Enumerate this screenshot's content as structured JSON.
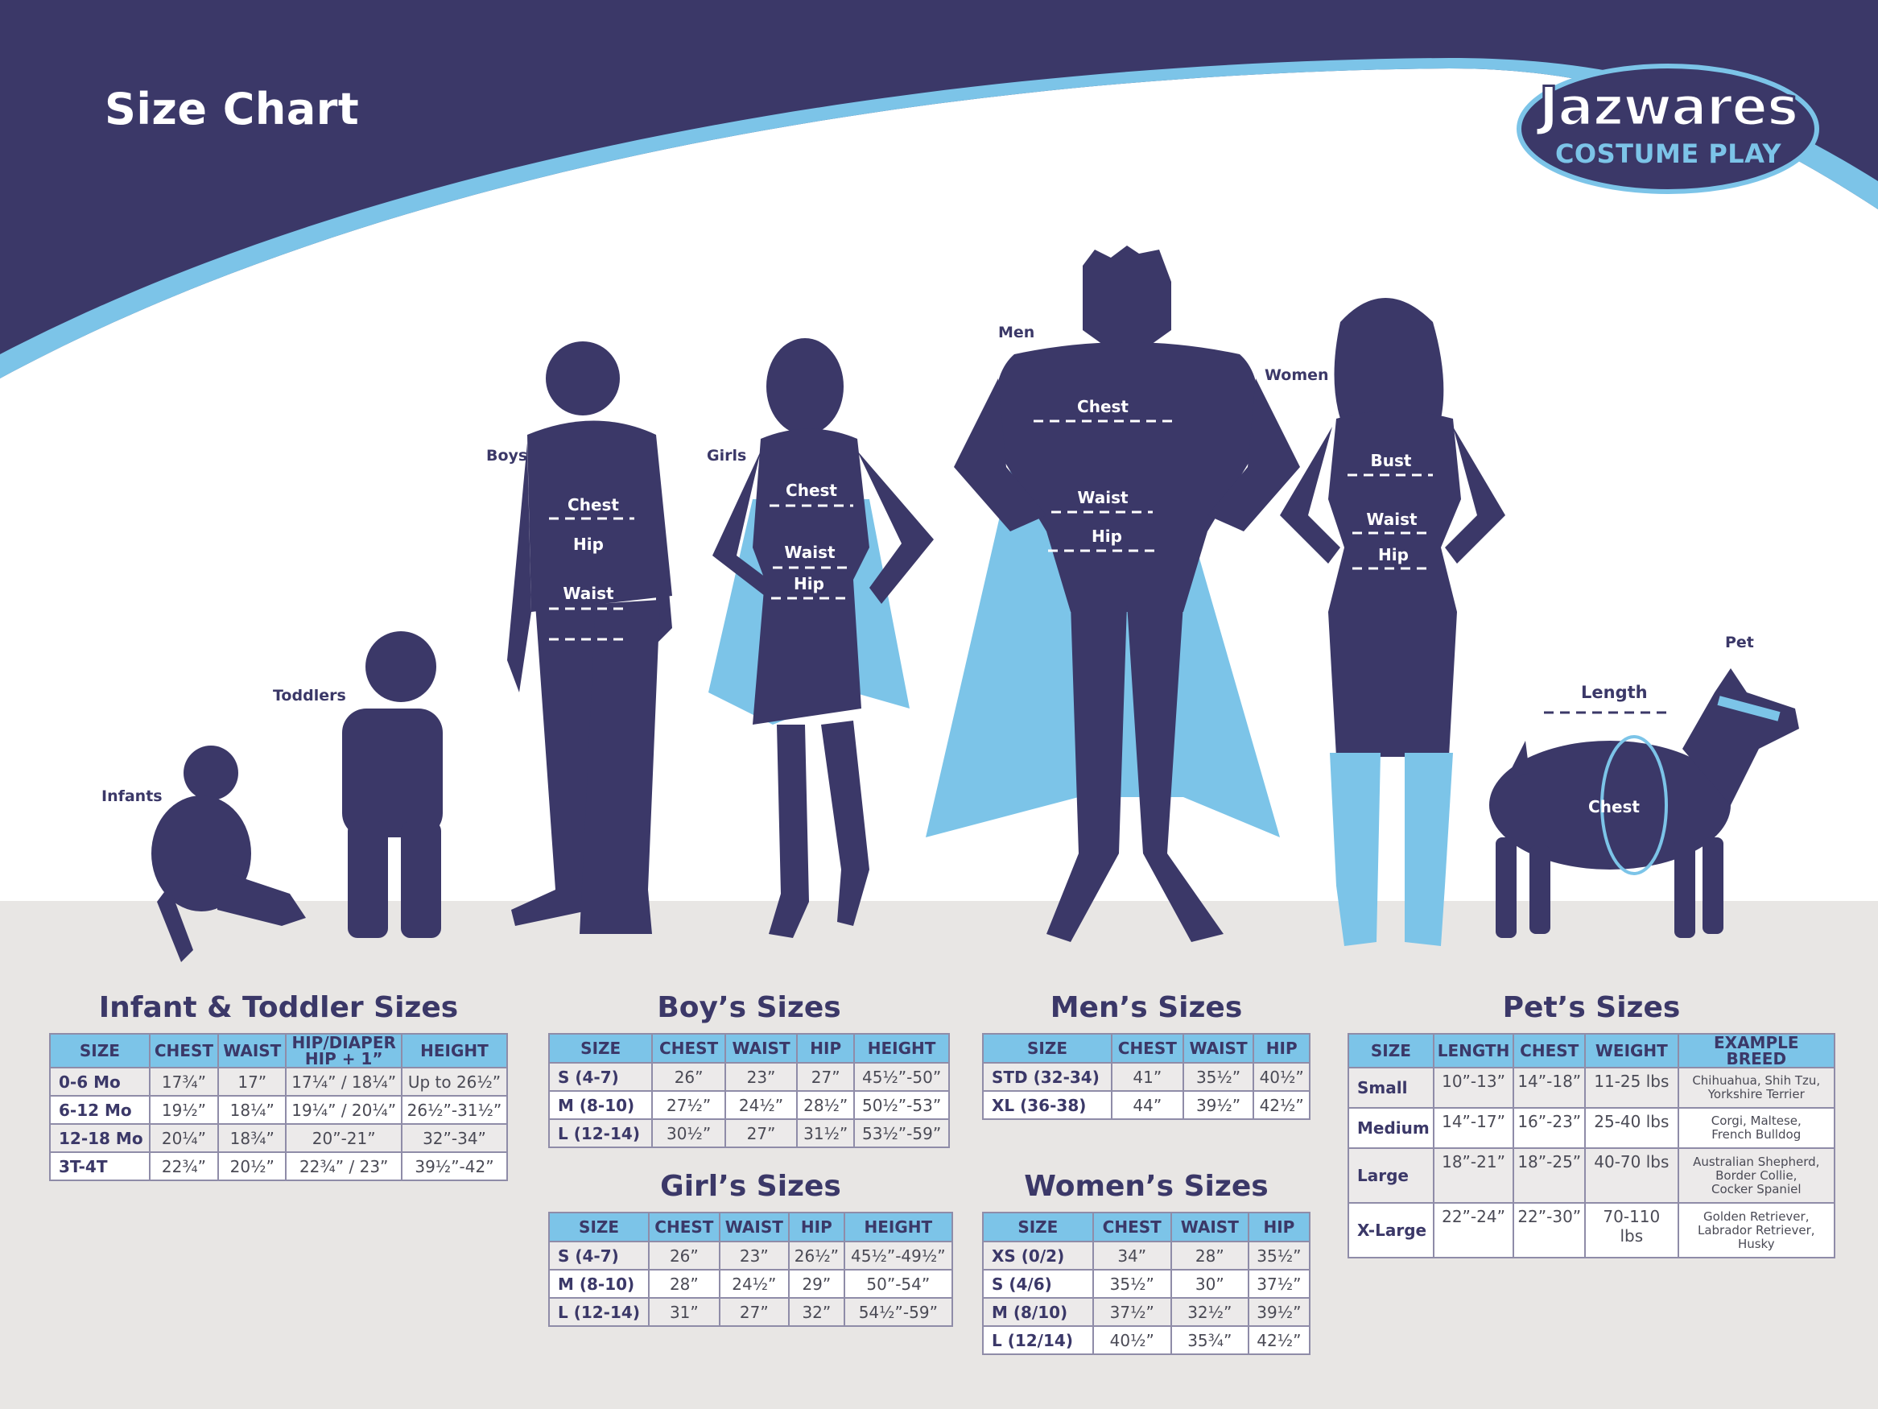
{
  "header": {
    "title": "Size Chart"
  },
  "logo": {
    "main": "Jazwares",
    "sub": "COSTUME PLAY"
  },
  "colors": {
    "navy": "#3b3868",
    "accent_blue": "#7cc4e8",
    "floor": "#e8e6e4",
    "white": "#ffffff"
  },
  "figures": {
    "infants": "Infants",
    "toddlers": "Toddlers",
    "boys": {
      "label": "Boys",
      "chest": "Chest",
      "hip": "Hip",
      "waist": "Waist"
    },
    "girls": {
      "label": "Girls",
      "chest": "Chest",
      "waist": "Waist",
      "hip": "Hip"
    },
    "men": {
      "label": "Men",
      "chest": "Chest",
      "waist": "Waist",
      "hip": "Hip"
    },
    "women": {
      "label": "Women",
      "bust": "Bust",
      "waist": "Waist",
      "hip": "Hip"
    },
    "pet": {
      "label": "Pet",
      "length": "Length",
      "chest": "Chest"
    }
  },
  "tables": {
    "infant": {
      "title": "Infant & Toddler Sizes",
      "headers": [
        "SIZE",
        "CHEST",
        "WAIST",
        "HIP/DIAPER\nHIP + 1”",
        "HEIGHT"
      ],
      "rows": [
        [
          "0-6 Mo",
          "17¾”",
          "17”",
          "17¼” / 18¼”",
          "Up to 26½”"
        ],
        [
          "6-12 Mo",
          "19½”",
          "18¼”",
          "19¼” / 20¼”",
          "26½”-31½”"
        ],
        [
          "12-18 Mo",
          "20¼”",
          "18¾”",
          "20”-21”",
          "32”-34”"
        ],
        [
          "3T-4T",
          "22¾”",
          "20½”",
          "22¾” / 23”",
          "39½”-42”"
        ]
      ]
    },
    "boys": {
      "title": "Boy’s Sizes",
      "headers": [
        "SIZE",
        "CHEST",
        "WAIST",
        "HIP",
        "HEIGHT"
      ],
      "rows": [
        [
          "S (4-7)",
          "26”",
          "23”",
          "27”",
          "45½”-50”"
        ],
        [
          "M (8-10)",
          "27½”",
          "24½”",
          "28½”",
          "50½”-53”"
        ],
        [
          "L (12-14)",
          "30½”",
          "27”",
          "31½”",
          "53½”-59”"
        ]
      ]
    },
    "girls": {
      "title": "Girl’s Sizes",
      "headers": [
        "SIZE",
        "CHEST",
        "WAIST",
        "HIP",
        "HEIGHT"
      ],
      "rows": [
        [
          "S (4-7)",
          "26”",
          "23”",
          "26½”",
          "45½”-49½”"
        ],
        [
          "M (8-10)",
          "28”",
          "24½”",
          "29”",
          "50”-54”"
        ],
        [
          "L (12-14)",
          "31”",
          "27”",
          "32”",
          "54½”-59”"
        ]
      ]
    },
    "men": {
      "title": "Men’s Sizes",
      "headers": [
        "SIZE",
        "CHEST",
        "WAIST",
        "HIP"
      ],
      "rows": [
        [
          "STD (32-34)",
          "41”",
          "35½”",
          "40½”"
        ],
        [
          "XL (36-38)",
          "44”",
          "39½”",
          "42½”"
        ]
      ]
    },
    "women": {
      "title": "Women’s Sizes",
      "headers": [
        "SIZE",
        "CHEST",
        "WAIST",
        "HIP"
      ],
      "rows": [
        [
          "XS (0/2)",
          "34”",
          "28”",
          "35½”"
        ],
        [
          "S (4/6)",
          "35½”",
          "30”",
          "37½”"
        ],
        [
          "M (8/10)",
          "37½”",
          "32½”",
          "39½”"
        ],
        [
          "L (12/14)",
          "40½”",
          "35¾”",
          "42½”"
        ]
      ]
    },
    "pet": {
      "title": "Pet’s Sizes",
      "headers": [
        "SIZE",
        "LENGTH",
        "CHEST",
        "WEIGHT",
        "EXAMPLE BREED"
      ],
      "rows": [
        [
          "Small",
          "10”-13”",
          "14”-18”",
          "11-25 lbs",
          "Chihuahua, Shih Tzu,\nYorkshire Terrier"
        ],
        [
          "Medium",
          "14”-17”",
          "16”-23”",
          "25-40 lbs",
          "Corgi, Maltese,\nFrench Bulldog"
        ],
        [
          "Large",
          "18”-21”",
          "18”-25”",
          "40-70 lbs",
          "Australian Shepherd,\nBorder Collie,\nCocker Spaniel"
        ],
        [
          "X-Large",
          "22”-24”",
          "22”-30”",
          "70-110 lbs",
          "Golden Retriever,\nLabrador Retriever,\nHusky"
        ]
      ]
    }
  }
}
